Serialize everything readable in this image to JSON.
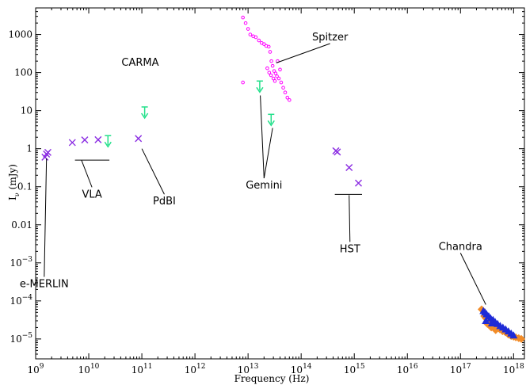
{
  "chart_data": {
    "type": "scatter",
    "title": "",
    "xlabel": "Frequency (Hz)",
    "ylabel": "I",
    "ylabel_sub": "ν",
    "ylabel_unit": "(mJy)",
    "x_scale": "log",
    "y_scale": "log",
    "xlim": [
      1000000000.0,
      1.6e+18
    ],
    "ylim": [
      3e-06,
      5000
    ],
    "grid": false,
    "x_ticks": [
      {
        "value": 1000000000.0,
        "base": "10",
        "exp": "9"
      },
      {
        "value": 10000000000.0,
        "base": "10",
        "exp": "10"
      },
      {
        "value": 100000000000.0,
        "base": "10",
        "exp": "11"
      },
      {
        "value": 1000000000000.0,
        "base": "10",
        "exp": "12"
      },
      {
        "value": 10000000000000.0,
        "base": "10",
        "exp": "13"
      },
      {
        "value": 100000000000000.0,
        "base": "10",
        "exp": "14"
      },
      {
        "value": 1000000000000000.0,
        "base": "10",
        "exp": "15"
      },
      {
        "value": 1e+16,
        "base": "10",
        "exp": "16"
      },
      {
        "value": 1e+17,
        "base": "10",
        "exp": "17"
      },
      {
        "value": 1e+18,
        "base": "10",
        "exp": "18"
      }
    ],
    "y_ticks": [
      {
        "value": 1000,
        "text": "1000"
      },
      {
        "value": 100,
        "text": "100"
      },
      {
        "value": 10,
        "text": "10"
      },
      {
        "value": 1,
        "text": "1"
      },
      {
        "value": 0.1,
        "text": "0.1"
      },
      {
        "value": 0.01,
        "text": "0.01"
      },
      {
        "value": 0.001,
        "base": "10",
        "exp": "−3"
      },
      {
        "value": 0.0001,
        "base": "10",
        "exp": "−4"
      },
      {
        "value": 1e-05,
        "base": "10",
        "exp": "−5"
      }
    ],
    "series": [
      {
        "marker": "x",
        "color": "#8a2be2",
        "x": [
          1500000000.0,
          1600000000.0,
          1700000000.0,
          4900000000.0,
          8400000000.0,
          15000000000.0,
          86000000000.0,
          450000000000000.0,
          480000000000000.0,
          800000000000000.0,
          1200000000000000.0
        ],
        "y": [
          0.6,
          0.72,
          0.8,
          1.45,
          1.7,
          1.72,
          1.85,
          0.88,
          0.82,
          0.32,
          0.125
        ]
      },
      {
        "marker": "upper-limit",
        "color": "#22e08a",
        "x": [
          23000000000.0,
          113000000000.0,
          16600000000000.0,
          27200000000000.0
        ],
        "y": [
          2.2,
          12.5,
          60,
          8.0
        ]
      },
      {
        "marker": "open-circle",
        "color": "#ff00ff",
        "x": [
          8000000000000.0,
          9000000000000.0,
          10000000000000.0,
          11000000000000.0,
          12500000000000.0,
          14000000000000.0,
          16000000000000.0,
          18000000000000.0,
          20000000000000.0,
          22000000000000.0,
          24500000000000.0,
          26000000000000.0,
          27500000000000.0,
          29000000000000.0,
          31000000000000.0,
          33000000000000.0,
          35000000000000.0,
          38000000000000.0,
          42000000000000.0,
          46000000000000.0,
          50000000000000.0,
          55000000000000.0,
          60000000000000.0,
          23000000000000.0,
          25000000000000.0,
          27000000000000.0,
          30000000000000.0,
          32000000000000.0,
          8000000000000.0,
          36000000000000.0,
          40000000000000.0
        ],
        "y": [
          2800,
          2000,
          1400,
          1000,
          900,
          850,
          700,
          600,
          560,
          500,
          480,
          350,
          200,
          150,
          110,
          95,
          80,
          70,
          55,
          40,
          30,
          22,
          19,
          130,
          100,
          85,
          70,
          60,
          55,
          200,
          120
        ]
      },
      {
        "marker": "filled-diamond",
        "color": "#f28c28",
        "x": [
          2.5e+17,
          2.8e+17,
          3e+17,
          3.3e+17,
          3.6e+17,
          4e+17,
          4.4e+17,
          5e+17,
          5.5e+17,
          6.2e+17,
          7e+17,
          8e+17,
          9e+17,
          1e+18,
          1.1e+18,
          1.25e+18,
          1.4e+18,
          3.2e+17,
          3.8e+17,
          4.6e+17
        ],
        "y": [
          6e-05,
          4e-05,
          3.5e-05,
          3e-05,
          2.8e-05,
          2.5e-05,
          2.2e-05,
          2e-05,
          1.8e-05,
          1.6e-05,
          1.5e-05,
          1.3e-05,
          1.2e-05,
          1.15e-05,
          1.1e-05,
          1.05e-05,
          1e-05,
          2.5e-05,
          2e-05,
          1.7e-05
        ]
      },
      {
        "marker": "filled-triangle",
        "color": "#1f2bd6",
        "x": [
          2.7e+17,
          2.9e+17,
          3.1e+17,
          3.4e+17,
          3.7e+17,
          4.1e+17,
          4.5e+17,
          5e+17,
          5.6e+17,
          6.3e+17,
          7.1e+17,
          8e+17,
          9e+17,
          1e+18,
          3e+17,
          3.9e+17
        ],
        "y": [
          5.5e-05,
          5e-05,
          4.5e-05,
          4e-05,
          3.5e-05,
          3.2e-05,
          2.8e-05,
          2.5e-05,
          2.2e-05,
          2e-05,
          1.8e-05,
          1.6e-05,
          1.4e-05,
          1.25e-05,
          3e-05,
          2.6e-05
        ]
      }
    ],
    "annotations": [
      {
        "text": "e-MERLIN",
        "x": 1450000000.0,
        "y": 0.00023,
        "tx": 1600000000.0,
        "ty": 0.55
      },
      {
        "text": "VLA",
        "x": 11500000000.0,
        "y": 0.052,
        "tx": 7300000000.0,
        "ty": 0.5
      },
      {
        "text": "CARMA",
        "x": 93000000000.0,
        "y": 150,
        "tx": null,
        "ty": null
      },
      {
        "text": "PdBI",
        "x": 265000000000.0,
        "y": 0.034,
        "tx": 100000000000.0,
        "ty": 1.0
      },
      {
        "text": "Spitzer",
        "x": 350000000000000.0,
        "y": 700,
        "tx": 34000000000000.0,
        "ty": 180
      },
      {
        "text": "Gemini",
        "x": 20000000000000.0,
        "y": 0.09,
        "tx": [
          17000000000000.0,
          29000000000000.0
        ],
        "ty": [
          25,
          3.5
        ]
      },
      {
        "text": "HST",
        "x": 830000000000000.0,
        "y": 0.0019,
        "tx": 800000000000000.0,
        "ty": 0.06
      },
      {
        "text": "Chandra",
        "x": 1e+17,
        "y": 0.0022,
        "tx": 3e+17,
        "ty": 8e-05
      }
    ],
    "limit_bars": [
      {
        "x1": 5500000000.0,
        "x2": 24500000000.0,
        "y": 0.5
      },
      {
        "x1": 430000000000000.0,
        "x2": 1400000000000000.0,
        "y": 0.063
      }
    ]
  }
}
